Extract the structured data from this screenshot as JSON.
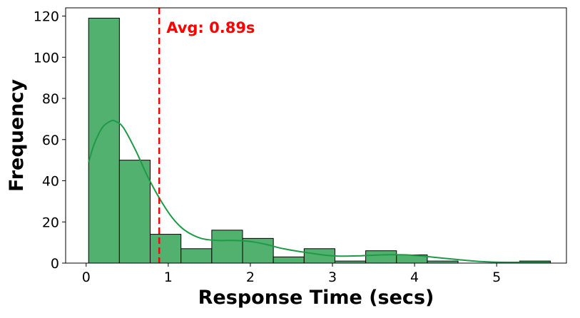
{
  "chart_data": {
    "type": "bar",
    "title": "",
    "xlabel": "Response Time (secs)",
    "ylabel": "Frequency",
    "xlim": [
      -0.25,
      5.85
    ],
    "ylim": [
      0,
      124
    ],
    "xticks": [
      0,
      1,
      2,
      3,
      4,
      5
    ],
    "yticks": [
      0,
      20,
      40,
      60,
      80,
      100,
      120
    ],
    "bins": [
      {
        "x0": 0.03,
        "x1": 0.405,
        "count": 119
      },
      {
        "x0": 0.405,
        "x1": 0.78,
        "count": 50
      },
      {
        "x0": 0.78,
        "x1": 1.155,
        "count": 14
      },
      {
        "x0": 1.155,
        "x1": 1.53,
        "count": 7
      },
      {
        "x0": 1.53,
        "x1": 1.905,
        "count": 16
      },
      {
        "x0": 1.905,
        "x1": 2.28,
        "count": 12
      },
      {
        "x0": 2.28,
        "x1": 2.655,
        "count": 3
      },
      {
        "x0": 2.655,
        "x1": 3.03,
        "count": 7
      },
      {
        "x0": 3.03,
        "x1": 3.405,
        "count": 1
      },
      {
        "x0": 3.405,
        "x1": 3.78,
        "count": 6
      },
      {
        "x0": 3.78,
        "x1": 4.155,
        "count": 4
      },
      {
        "x0": 4.155,
        "x1": 4.53,
        "count": 1
      },
      {
        "x0": 4.53,
        "x1": 4.905,
        "count": 0
      },
      {
        "x0": 4.905,
        "x1": 5.28,
        "count": 0
      },
      {
        "x0": 5.28,
        "x1": 5.655,
        "count": 1
      }
    ],
    "kde": [
      [
        0.03,
        49
      ],
      [
        0.1,
        58
      ],
      [
        0.2,
        66
      ],
      [
        0.3,
        69
      ],
      [
        0.35,
        69
      ],
      [
        0.45,
        66
      ],
      [
        0.6,
        55
      ],
      [
        0.75,
        42
      ],
      [
        0.9,
        31
      ],
      [
        1.05,
        22
      ],
      [
        1.2,
        16
      ],
      [
        1.4,
        12
      ],
      [
        1.6,
        11
      ],
      [
        1.8,
        11
      ],
      [
        2.0,
        10.5
      ],
      [
        2.2,
        9
      ],
      [
        2.4,
        7
      ],
      [
        2.7,
        5
      ],
      [
        3.0,
        3.5
      ],
      [
        3.3,
        3.5
      ],
      [
        3.6,
        4
      ],
      [
        3.9,
        4
      ],
      [
        4.2,
        3
      ],
      [
        4.5,
        1.8
      ],
      [
        4.8,
        0.8
      ],
      [
        5.1,
        0.4
      ],
      [
        5.4,
        0.5
      ],
      [
        5.65,
        0.5
      ]
    ],
    "mean_line": {
      "x": 0.89,
      "label": "Avg: 0.89s",
      "color": "#ff0000"
    },
    "colors": {
      "bar_fill": "#53b170",
      "bar_edge": "#000000",
      "kde_line": "#1e9a47"
    },
    "grid": false,
    "legend": "none"
  }
}
